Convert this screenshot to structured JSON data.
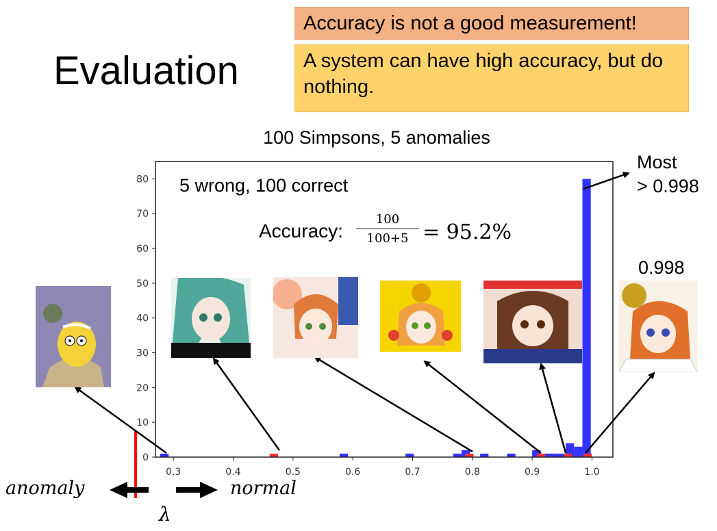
{
  "slide": {
    "title": "Evaluation",
    "callout_top": "Accuracy is not a good measurement!",
    "callout_bottom": "A system can have high accuracy, but do nothing.",
    "most_line1": "Most",
    "most_line2": "> 0.998",
    "threshold_value": "0.998",
    "wrong_correct": "5 wrong, 100 correct",
    "accuracy_label": "Accuracy:",
    "frac_num": "100",
    "frac_den": "100+5",
    "accuracy_result": "= 95.2%",
    "anomaly_label": "anomaly",
    "normal_label": "normal",
    "lambda_label": "λ",
    "colors": {
      "callout_red": "#f4b183",
      "callout_orange": "#ffd26b",
      "blue_bars": "#3333ff",
      "red_bars": "#ff3333",
      "threshold": "#ff0000"
    }
  },
  "chart_data": {
    "type": "bar",
    "title": "100 Simpsons, 5 anomalies",
    "xlim": [
      0.27,
      1.035
    ],
    "ylim": [
      0,
      85
    ],
    "xticks": [
      0.3,
      0.4,
      0.5,
      0.6,
      0.7,
      0.8,
      0.9,
      1.0
    ],
    "xtick_labels": [
      "0.3",
      "0.4",
      "0.5",
      "0.6",
      "0.7",
      "0.8",
      "0.9",
      "1.0"
    ],
    "yticks": [
      0,
      10,
      20,
      30,
      40,
      50,
      60,
      70,
      80
    ],
    "ytick_labels": [
      "0",
      "10",
      "20",
      "30",
      "40",
      "50",
      "60",
      "70",
      "80"
    ],
    "bin_width": 0.014,
    "series": [
      {
        "color": "#3333ff",
        "bars": [
          {
            "x": 0.285,
            "value": 1
          },
          {
            "x": 0.585,
            "value": 1
          },
          {
            "x": 0.695,
            "value": 1
          },
          {
            "x": 0.775,
            "value": 1
          },
          {
            "x": 0.789,
            "value": 2
          },
          {
            "x": 0.82,
            "value": 1
          },
          {
            "x": 0.865,
            "value": 1
          },
          {
            "x": 0.907,
            "value": 2
          },
          {
            "x": 0.921,
            "value": 1
          },
          {
            "x": 0.935,
            "value": 1
          },
          {
            "x": 0.949,
            "value": 1
          },
          {
            "x": 0.963,
            "value": 4
          },
          {
            "x": 0.977,
            "value": 3
          },
          {
            "x": 0.991,
            "value": 80
          }
        ]
      },
      {
        "color": "#ff3333",
        "bars": [
          {
            "x": 0.468,
            "value": 1
          },
          {
            "x": 0.795,
            "value": 1
          },
          {
            "x": 0.915,
            "value": 1
          },
          {
            "x": 0.96,
            "value": 1
          },
          {
            "x": 0.993,
            "value": 1
          }
        ]
      }
    ],
    "threshold_x": 0.285
  }
}
